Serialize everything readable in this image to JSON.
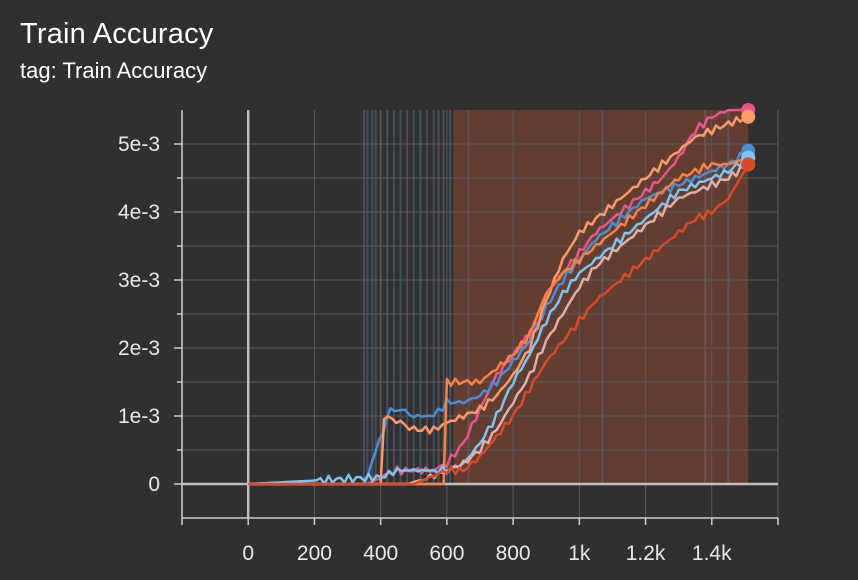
{
  "card": {
    "title": "Train Accuracy",
    "tag": "tag: Train Accuracy"
  },
  "chart_data": {
    "type": "line",
    "title": "Train Accuracy",
    "xlim": [
      -200,
      1600
    ],
    "ylim": [
      -0.0005,
      0.0055
    ],
    "x_ticks": [
      {
        "value": 0,
        "label": "0"
      },
      {
        "value": 200,
        "label": "200"
      },
      {
        "value": 400,
        "label": "400"
      },
      {
        "value": 600,
        "label": "600"
      },
      {
        "value": 800,
        "label": "800"
      },
      {
        "value": 1000,
        "label": "1k"
      },
      {
        "value": 1200,
        "label": "1.2k"
      },
      {
        "value": 1400,
        "label": "1.4k"
      }
    ],
    "y_ticks": [
      {
        "value": 0,
        "label": "0"
      },
      {
        "value": 0.001,
        "label": "1e-3"
      },
      {
        "value": 0.002,
        "label": "2e-3"
      },
      {
        "value": 0.003,
        "label": "3e-3"
      },
      {
        "value": 0.004,
        "label": "4e-3"
      },
      {
        "value": 0.005,
        "label": "5e-3"
      }
    ],
    "grid": true,
    "shaded_region": {
      "x": [
        620,
        1510
      ],
      "color": "#6b3f33"
    },
    "series": [
      {
        "color": "#e8578a",
        "x": [
          0,
          360,
          400,
          450,
          500,
          560,
          600,
          650,
          700,
          750,
          800,
          850,
          900,
          950,
          1000,
          1050,
          1100,
          1150,
          1200,
          1250,
          1300,
          1350,
          1400,
          1450,
          1510
        ],
        "y": [
          0,
          0,
          0.0001,
          0.0002,
          0.0002,
          0.0002,
          0.0003,
          0.0006,
          0.0011,
          0.0016,
          0.0019,
          0.0022,
          0.0028,
          0.0031,
          0.0034,
          0.0037,
          0.0039,
          0.0041,
          0.0043,
          0.0045,
          0.0048,
          0.0052,
          0.0054,
          0.0055,
          0.0055
        ]
      },
      {
        "color": "#4a8fd6",
        "x": [
          0,
          350,
          430,
          460,
          500,
          560,
          600,
          650,
          700,
          750,
          800,
          850,
          900,
          950,
          1000,
          1050,
          1100,
          1150,
          1200,
          1250,
          1300,
          1350,
          1400,
          1450,
          1510
        ],
        "y": [
          0,
          0,
          0.0011,
          0.0011,
          0.001,
          0.001,
          0.0012,
          0.0012,
          0.0013,
          0.0015,
          0.0018,
          0.0021,
          0.0026,
          0.003,
          0.0033,
          0.0036,
          0.0038,
          0.004,
          0.0042,
          0.0043,
          0.0044,
          0.0045,
          0.0046,
          0.0047,
          0.0049
        ]
      },
      {
        "color": "#ff9a6a",
        "x": [
          0,
          400,
          410,
          460,
          500,
          560,
          600,
          650,
          700,
          750,
          800,
          850,
          900,
          950,
          1000,
          1050,
          1100,
          1150,
          1200,
          1250,
          1300,
          1350,
          1400,
          1450,
          1510
        ],
        "y": [
          0,
          0,
          0.001,
          0.0009,
          0.0008,
          0.0008,
          0.0009,
          0.001,
          0.0011,
          0.0013,
          0.0016,
          0.002,
          0.0027,
          0.0033,
          0.0037,
          0.0039,
          0.0041,
          0.0043,
          0.0045,
          0.0047,
          0.0049,
          0.0051,
          0.0052,
          0.0053,
          0.0054
        ]
      },
      {
        "color": "#ff7f45",
        "x": [
          0,
          590,
          600,
          650,
          700,
          750,
          800,
          850,
          900,
          950,
          1000,
          1050,
          1100,
          1150,
          1200,
          1250,
          1300,
          1350,
          1400,
          1450,
          1510
        ],
        "y": [
          0,
          0,
          0.0015,
          0.0015,
          0.0015,
          0.0017,
          0.0019,
          0.0022,
          0.0028,
          0.0031,
          0.0033,
          0.0035,
          0.0037,
          0.0039,
          0.0041,
          0.0043,
          0.0045,
          0.0046,
          0.0047,
          0.0047,
          0.0048
        ]
      },
      {
        "color": "#7ec4f0",
        "x": [
          0,
          400,
          450,
          500,
          560,
          600,
          650,
          700,
          750,
          800,
          850,
          900,
          950,
          1000,
          1050,
          1100,
          1150,
          1200,
          1250,
          1300,
          1350,
          1400,
          1450,
          1510
        ],
        "y": [
          0,
          0.0001,
          0.0002,
          0.0002,
          0.0002,
          0.0002,
          0.0003,
          0.0006,
          0.001,
          0.0015,
          0.0019,
          0.0024,
          0.0028,
          0.0031,
          0.0033,
          0.0035,
          0.0037,
          0.0039,
          0.0041,
          0.0043,
          0.0044,
          0.0045,
          0.0046,
          0.0048
        ]
      },
      {
        "color": "#e0b0a8",
        "x": [
          0,
          480,
          550,
          600,
          650,
          700,
          750,
          800,
          850,
          900,
          950,
          1000,
          1050,
          1100,
          1150,
          1200,
          1250,
          1300,
          1350,
          1400,
          1450,
          1510
        ],
        "y": [
          0,
          0,
          0.0001,
          0.0002,
          0.0003,
          0.0005,
          0.0008,
          0.0012,
          0.0016,
          0.0021,
          0.0025,
          0.0029,
          0.0032,
          0.0034,
          0.0036,
          0.0038,
          0.004,
          0.0042,
          0.0043,
          0.0044,
          0.0045,
          0.0047
        ]
      },
      {
        "color": "#d84a28",
        "x": [
          0,
          500,
          550,
          600,
          650,
          700,
          750,
          800,
          850,
          900,
          950,
          1000,
          1050,
          1100,
          1150,
          1200,
          1250,
          1300,
          1350,
          1400,
          1450,
          1510
        ],
        "y": [
          0,
          0,
          0.0001,
          0.0002,
          0.0002,
          0.0004,
          0.0007,
          0.001,
          0.0014,
          0.0018,
          0.0021,
          0.0024,
          0.0027,
          0.0029,
          0.0031,
          0.0033,
          0.0035,
          0.0037,
          0.0039,
          0.004,
          0.0042,
          0.0047
        ]
      }
    ]
  }
}
